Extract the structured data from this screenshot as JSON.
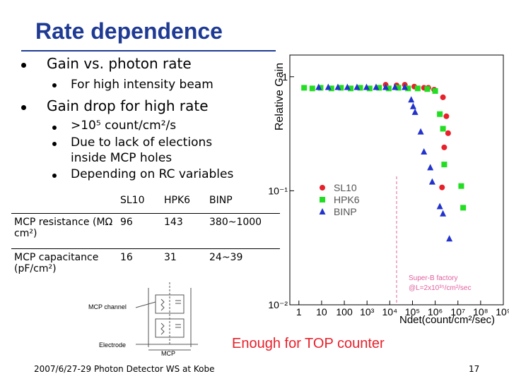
{
  "title": "Rate dependence",
  "bullets": [
    {
      "text": "Gain vs. photon rate",
      "sub": [
        "For high intensity beam"
      ]
    },
    {
      "text": "Gain drop for high rate",
      "sub": [
        ">10⁵ count/cm²/s",
        "Due to lack of elections inside MCP holes",
        "Depending on RC variables"
      ]
    }
  ],
  "table": {
    "header": [
      "",
      "SL10",
      "HPK6",
      "BINP"
    ],
    "rows": [
      [
        "MCP resistance (MΩ cm²)",
        "96",
        "143",
        "380~1000"
      ],
      [
        "MCP capacitance (pF/cm²)",
        "16",
        "31",
        "24~39"
      ]
    ]
  },
  "circuit": {
    "channel": "MCP channel",
    "electrode": "Electrode",
    "mcp": "MCP"
  },
  "note": "Enough for TOP counter",
  "footer": "2007/6/27-29 Photon Detector WS at Kobe",
  "page_number": "17",
  "chart_data": {
    "type": "scatter",
    "y_label": "Relative Gain",
    "x_label": "Ndet(count/cm²/sec)",
    "annotation": [
      "Super-B factory",
      "@L=2x10³⁵/cm²/sec"
    ],
    "vline": 20000,
    "xscale": "log",
    "yscale": "log",
    "legend": "left",
    "xlim": [
      0.4,
      1000000000
    ],
    "ylim": [
      0.01,
      1.55
    ],
    "xticks": [
      1,
      10,
      100,
      {
        "value": 1000,
        "label": "10³"
      },
      {
        "value": 10000,
        "label": "10⁴"
      },
      {
        "value": 100000,
        "label": "10⁵"
      },
      {
        "value": 1000000,
        "label": "10⁶"
      },
      {
        "value": 10000000,
        "label": "10⁷"
      },
      {
        "value": 100000000,
        "label": "10⁸"
      },
      {
        "value": 1000000000,
        "label": "10⁹"
      }
    ],
    "yticks": [
      1,
      {
        "value": 0.1,
        "label": "10⁻¹"
      },
      {
        "value": 0.01,
        "label": "10⁻²"
      }
    ],
    "series": [
      {
        "name": "SL10",
        "color": "#e8202a",
        "marker": "circle",
        "x": [
          6600,
          20000,
          46000,
          120000,
          320000,
          500000,
          900000,
          2200000,
          3100000,
          3700000,
          2500000,
          2000000
        ],
        "values": [
          0.85,
          0.84,
          0.85,
          0.82,
          0.8,
          0.8,
          0.77,
          0.66,
          0.45,
          0.32,
          0.24,
          0.107
        ]
      },
      {
        "name": "HPK6",
        "color": "#22dd22",
        "marker": "square",
        "x": [
          1.7,
          3.9,
          9,
          27,
          71,
          190,
          500,
          1300,
          3400,
          9000,
          24000,
          64000,
          170000,
          450000,
          1000000,
          1600000,
          2200000,
          2500000,
          14000000,
          17000000
        ],
        "values": [
          0.8,
          0.79,
          0.8,
          0.79,
          0.8,
          0.79,
          0.8,
          0.79,
          0.8,
          0.79,
          0.8,
          0.79,
          0.79,
          0.78,
          0.75,
          0.47,
          0.35,
          0.17,
          0.11,
          0.071
        ]
      },
      {
        "name": "BINP",
        "color": "#2233cc",
        "marker": "triangle",
        "x": [
          7.4,
          19.6,
          52,
          136,
          360,
          950,
          2500,
          6600,
          17000,
          46000,
          88000,
          107000,
          130000,
          230000,
          320000,
          610000,
          740000,
          1600000,
          2200000,
          4200000
        ],
        "values": [
          0.81,
          0.81,
          0.81,
          0.81,
          0.81,
          0.81,
          0.81,
          0.81,
          0.81,
          0.81,
          0.63,
          0.55,
          0.49,
          0.33,
          0.22,
          0.16,
          0.12,
          0.073,
          0.063,
          0.038
        ]
      }
    ]
  }
}
